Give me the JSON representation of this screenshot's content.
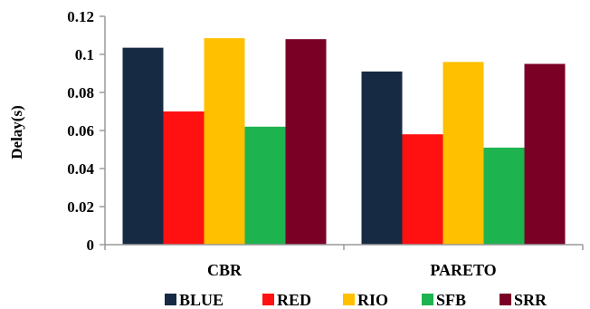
{
  "chart_data": {
    "type": "bar",
    "categories": [
      "CBR",
      "PARETO"
    ],
    "series": [
      {
        "name": "BLUE",
        "color": "#172a44",
        "values": [
          0.1035,
          0.091
        ]
      },
      {
        "name": "RED",
        "color": "#ff1111",
        "values": [
          0.07,
          0.058
        ]
      },
      {
        "name": "RIO",
        "color": "#ffc000",
        "values": [
          0.1085,
          0.096
        ]
      },
      {
        "name": "SFB",
        "color": "#1db34f",
        "values": [
          0.062,
          0.051
        ]
      },
      {
        "name": "SRR",
        "color": "#7a0026",
        "values": [
          0.108,
          0.095
        ]
      }
    ],
    "title": "",
    "xlabel": "",
    "ylabel": "Delay(s)",
    "ylim": [
      0,
      0.12
    ],
    "yticks": [
      "0",
      "0.02",
      "0.04",
      "0.06",
      "0.08",
      "0.1",
      "0.12"
    ],
    "grid": false,
    "legend_position": "bottom"
  }
}
